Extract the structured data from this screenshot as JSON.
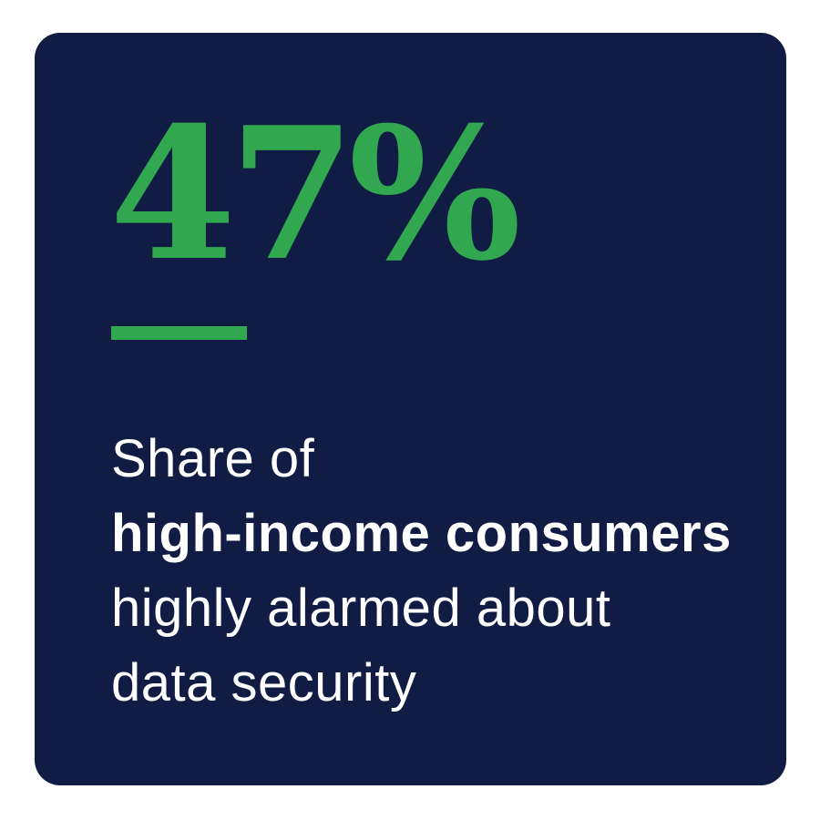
{
  "page": {
    "background_color": "#ffffff"
  },
  "card": {
    "background_color": "#101c44",
    "accent_color": "#31a74f",
    "text_color": "#ffffff",
    "stat_value": "47%",
    "description": {
      "lines": [
        {
          "text": "Share of",
          "bold": false
        },
        {
          "text": "high-income consumers",
          "bold": true
        },
        {
          "text": "highly alarmed about",
          "bold": false
        },
        {
          "text": "data security",
          "bold": false
        }
      ]
    }
  }
}
